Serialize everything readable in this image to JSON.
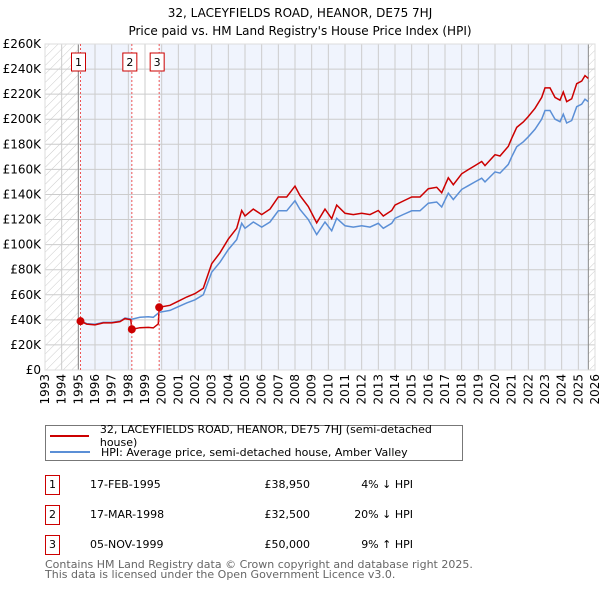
{
  "chart_data": {
    "type": "line",
    "title": "32, LACEYFIELDS ROAD, HEANOR, DE75 7HJ",
    "subtitle": "Price paid vs. HM Land Registry's House Price Index (HPI)",
    "xlim": [
      1993,
      2026
    ],
    "ylim": [
      0,
      260000
    ],
    "y_ticks": [
      0,
      20000,
      40000,
      60000,
      80000,
      100000,
      120000,
      140000,
      160000,
      180000,
      200000,
      220000,
      240000,
      260000
    ],
    "y_tick_labels": [
      "£0",
      "£20K",
      "£40K",
      "£60K",
      "£80K",
      "£100K",
      "£120K",
      "£140K",
      "£160K",
      "£180K",
      "£200K",
      "£220K",
      "£240K",
      "£260K"
    ],
    "x_ticks": [
      "1993",
      "1994",
      "1995",
      "1996",
      "1997",
      "1998",
      "1999",
      "2000",
      "2001",
      "2002",
      "2003",
      "2004",
      "2005",
      "2006",
      "2007",
      "2008",
      "2009",
      "2010",
      "2011",
      "2012",
      "2013",
      "2014",
      "2015",
      "2016",
      "2017",
      "2018",
      "2019",
      "2020",
      "2021",
      "2022",
      "2023",
      "2024",
      "2025",
      "2026"
    ],
    "grid": true,
    "hatched_before": 1995,
    "hatched_after": 2025.6,
    "series": [
      {
        "name": "32, LACEYFIELDS ROAD, HEANOR, DE75 7HJ (semi-detached house)",
        "color": "#cc0000",
        "unit": "K",
        "points": [
          [
            1995.13,
            38.95
          ],
          [
            1995.5,
            36.6
          ],
          [
            1996,
            36
          ],
          [
            1996.5,
            37.6
          ],
          [
            1997,
            37.6
          ],
          [
            1997.5,
            38.6
          ],
          [
            1997.8,
            41
          ],
          [
            1998.15,
            40
          ],
          [
            1998.21,
            32.5
          ],
          [
            1998.7,
            33.7
          ],
          [
            1999.2,
            34
          ],
          [
            1999.5,
            33.6
          ],
          [
            1999.8,
            36.8
          ],
          [
            1999.85,
            50
          ],
          [
            2000.5,
            51.6
          ],
          [
            2001,
            54.9
          ],
          [
            2001.5,
            58.2
          ],
          [
            2002,
            60.9
          ],
          [
            2002.5,
            65.2
          ],
          [
            2003,
            84.8
          ],
          [
            2003.5,
            93.5
          ],
          [
            2004,
            104.4
          ],
          [
            2004.5,
            113
          ],
          [
            2004.8,
            127.2
          ],
          [
            2005,
            122.8
          ],
          [
            2005.5,
            128.3
          ],
          [
            2006,
            123.9
          ],
          [
            2006.5,
            128.3
          ],
          [
            2007,
            138
          ],
          [
            2007.5,
            138
          ],
          [
            2008,
            146.7
          ],
          [
            2008.3,
            139.1
          ],
          [
            2008.8,
            130.4
          ],
          [
            2009.3,
            117.4
          ],
          [
            2009.8,
            128.3
          ],
          [
            2010.2,
            120.7
          ],
          [
            2010.5,
            131.5
          ],
          [
            2011,
            125
          ],
          [
            2011.5,
            123.9
          ],
          [
            2012,
            125
          ],
          [
            2012.5,
            123.9
          ],
          [
            2013,
            127.2
          ],
          [
            2013.3,
            122.8
          ],
          [
            2013.8,
            127.2
          ],
          [
            2014,
            131.5
          ],
          [
            2014.5,
            134.8
          ],
          [
            2015,
            138
          ],
          [
            2015.5,
            138
          ],
          [
            2016,
            144.6
          ],
          [
            2016.5,
            145.7
          ],
          [
            2016.8,
            141.3
          ],
          [
            2017.2,
            153.3
          ],
          [
            2017.5,
            147.8
          ],
          [
            2018,
            156.5
          ],
          [
            2018.4,
            159.8
          ],
          [
            2018.8,
            163
          ],
          [
            2019.2,
            166.3
          ],
          [
            2019.4,
            163
          ],
          [
            2020,
            171.7
          ],
          [
            2020.3,
            170.7
          ],
          [
            2020.8,
            178.3
          ],
          [
            2021,
            184.8
          ],
          [
            2021.3,
            193.5
          ],
          [
            2021.7,
            197.8
          ],
          [
            2022,
            202.2
          ],
          [
            2022.4,
            208.7
          ],
          [
            2022.8,
            217.4
          ],
          [
            2023,
            225
          ],
          [
            2023.3,
            225
          ],
          [
            2023.6,
            217.4
          ],
          [
            2023.9,
            215.2
          ],
          [
            2024.1,
            221.7
          ],
          [
            2024.3,
            214.1
          ],
          [
            2024.6,
            216.3
          ],
          [
            2024.9,
            228.3
          ],
          [
            2025.2,
            230.4
          ],
          [
            2025.4,
            234.8
          ],
          [
            2025.6,
            232.6
          ]
        ]
      },
      {
        "name": "HPI: Average price, semi-detached house, Amber Valley",
        "color": "#5b8fd6",
        "unit": "K",
        "points": [
          [
            1995.13,
            39
          ],
          [
            1995.5,
            37
          ],
          [
            1996,
            36.5
          ],
          [
            1996.5,
            38
          ],
          [
            1997,
            38
          ],
          [
            1997.5,
            39
          ],
          [
            1997.8,
            41.5
          ],
          [
            1998.2,
            40.5
          ],
          [
            1998.7,
            42
          ],
          [
            1999.2,
            42.5
          ],
          [
            1999.5,
            42
          ],
          [
            1999.85,
            46
          ],
          [
            2000.5,
            47.5
          ],
          [
            2001,
            50.5
          ],
          [
            2001.5,
            53.5
          ],
          [
            2002,
            56
          ],
          [
            2002.5,
            60
          ],
          [
            2003,
            78
          ],
          [
            2003.5,
            86
          ],
          [
            2004,
            96
          ],
          [
            2004.5,
            104
          ],
          [
            2004.8,
            117
          ],
          [
            2005,
            113
          ],
          [
            2005.5,
            118
          ],
          [
            2006,
            114
          ],
          [
            2006.5,
            118
          ],
          [
            2007,
            127
          ],
          [
            2007.5,
            127
          ],
          [
            2008,
            135
          ],
          [
            2008.3,
            128
          ],
          [
            2008.8,
            120
          ],
          [
            2009.3,
            108
          ],
          [
            2009.8,
            118
          ],
          [
            2010.2,
            111
          ],
          [
            2010.5,
            121
          ],
          [
            2011,
            115
          ],
          [
            2011.5,
            114
          ],
          [
            2012,
            115
          ],
          [
            2012.5,
            114
          ],
          [
            2013,
            117
          ],
          [
            2013.3,
            113
          ],
          [
            2013.8,
            117
          ],
          [
            2014,
            121
          ],
          [
            2014.5,
            124
          ],
          [
            2015,
            127
          ],
          [
            2015.5,
            127
          ],
          [
            2016,
            133
          ],
          [
            2016.5,
            134
          ],
          [
            2016.8,
            130
          ],
          [
            2017.2,
            141
          ],
          [
            2017.5,
            136
          ],
          [
            2018,
            144
          ],
          [
            2018.4,
            147
          ],
          [
            2018.8,
            150
          ],
          [
            2019.2,
            153
          ],
          [
            2019.4,
            150
          ],
          [
            2020,
            158
          ],
          [
            2020.3,
            157
          ],
          [
            2020.8,
            164
          ],
          [
            2021,
            170
          ],
          [
            2021.3,
            178
          ],
          [
            2021.7,
            182
          ],
          [
            2022,
            186
          ],
          [
            2022.4,
            192
          ],
          [
            2022.8,
            200
          ],
          [
            2023,
            207
          ],
          [
            2023.3,
            207
          ],
          [
            2023.6,
            200
          ],
          [
            2023.9,
            198
          ],
          [
            2024.1,
            204
          ],
          [
            2024.3,
            197
          ],
          [
            2024.6,
            199
          ],
          [
            2024.9,
            210
          ],
          [
            2025.2,
            212
          ],
          [
            2025.4,
            216
          ],
          [
            2025.6,
            214
          ]
        ]
      }
    ],
    "sales": [
      {
        "label": "1",
        "year": 1995.13,
        "price": 38950
      },
      {
        "label": "2",
        "year": 1998.21,
        "price": 32500
      },
      {
        "label": "3",
        "year": 1999.85,
        "price": 50000
      }
    ]
  },
  "table": [
    {
      "num": "1",
      "date": "17-FEB-1995",
      "price": "£38,950",
      "hpi": "4% ↓ HPI"
    },
    {
      "num": "2",
      "date": "17-MAR-1998",
      "price": "£32,500",
      "hpi": "20% ↓ HPI"
    },
    {
      "num": "3",
      "date": "05-NOV-1999",
      "price": "£50,000",
      "hpi": "9% ↑ HPI"
    }
  ],
  "footer": {
    "line1": "Contains HM Land Registry data © Crown copyright and database right 2025.",
    "line2": "This data is licensed under the Open Government Licence v3.0."
  }
}
